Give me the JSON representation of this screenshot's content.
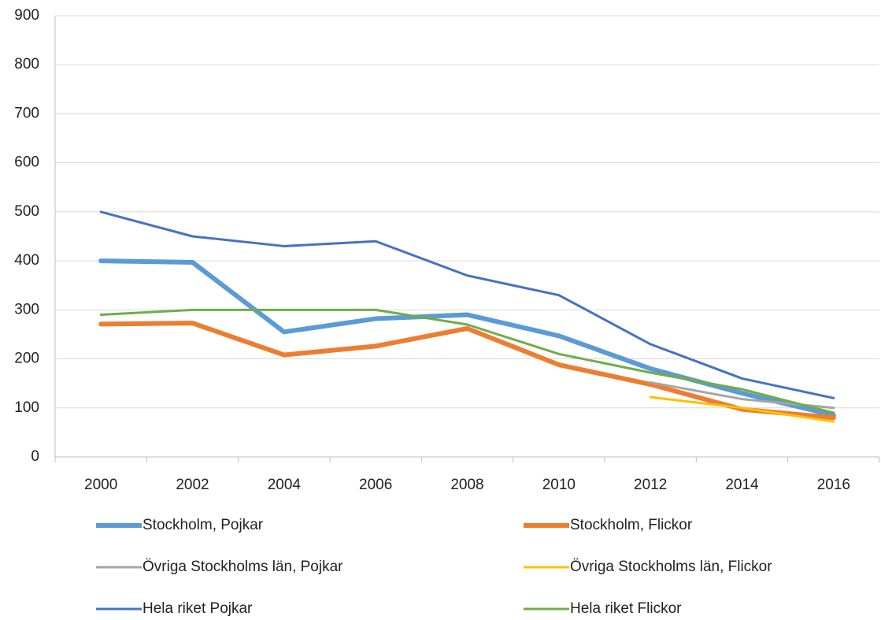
{
  "chart_data": {
    "type": "line",
    "categories": [
      "2000",
      "2002",
      "2004",
      "2006",
      "2008",
      "2010",
      "2012",
      "2014",
      "2016"
    ],
    "series": [
      {
        "name": "Stockholm, Pojkar",
        "color": "#5b9bd5",
        "values": [
          400,
          397,
          255,
          282,
          290,
          247,
          180,
          130,
          85
        ]
      },
      {
        "name": "Stockholm, Flickor",
        "color": "#ed7d31",
        "values": [
          271,
          273,
          208,
          226,
          262,
          188,
          148,
          97,
          80
        ]
      },
      {
        "name": "Övriga Stockholms län, Pojkar",
        "color": "#a5a5a5",
        "values": [
          null,
          null,
          null,
          null,
          null,
          null,
          152,
          118,
          100
        ]
      },
      {
        "name": "Övriga Stockholms län, Flickor",
        "color": "#ffc000",
        "values": [
          null,
          null,
          null,
          null,
          null,
          null,
          122,
          100,
          72
        ]
      },
      {
        "name": "Hela riket Pojkar",
        "color": "#4472c4",
        "values": [
          500,
          450,
          430,
          440,
          370,
          330,
          230,
          160,
          120
        ]
      },
      {
        "name": "Hela riket Flickor",
        "color": "#70ad47",
        "values": [
          290,
          300,
          300,
          300,
          270,
          210,
          172,
          138,
          90
        ]
      }
    ],
    "ylim": [
      0,
      900
    ],
    "yticks": [
      0,
      100,
      200,
      300,
      400,
      500,
      600,
      700,
      800,
      900
    ],
    "grid": true,
    "legend": "bottom"
  }
}
